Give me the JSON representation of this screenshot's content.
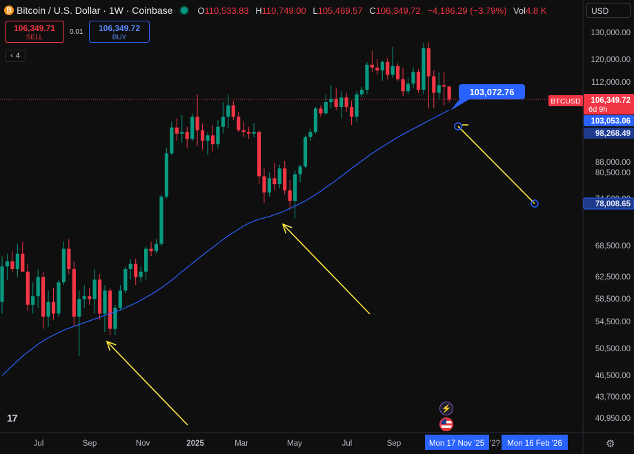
{
  "header": {
    "title": "Bitcoin / U.S. Dollar · 1W · Coinbase",
    "logo_glyph": "₿",
    "ohlc": [
      {
        "key": "O",
        "value": "110,533.83"
      },
      {
        "key": "H",
        "value": "110,749.00"
      },
      {
        "key": "L",
        "value": "105,469.57"
      },
      {
        "key": "C",
        "value": "106,349.72"
      }
    ],
    "change": "−4,186.29 (−3.79%)",
    "vol_label": "Vol",
    "vol_value": "4.8 K"
  },
  "trade": {
    "sell_price": "106,349.71",
    "sell_label": "SELL",
    "spread": "0.01",
    "buy_price": "106,349.72",
    "buy_label": "BUY"
  },
  "indicators_count": "4",
  "currency": "USD",
  "price_axis": {
    "ticks": [
      "130,000.00",
      "120,000.00",
      "112,000.00",
      "88,000.00",
      "80,500.00",
      "74,500.00",
      "68,500.00",
      "62,500.00",
      "58,500.00",
      "54,500.00",
      "50,500.00",
      "46,500.00",
      "43,700.00",
      "40,950.00"
    ],
    "symbol_tag": "BTCUSD",
    "last_price": "106,349.72",
    "countdown": "6d 9h",
    "ma_value": "103,053.06",
    "line_value_1": "98,268.49",
    "line_value_2": "78,008.65"
  },
  "plot_label": "103,072.76",
  "time_axis": {
    "labels": [
      "Jul",
      "Sep",
      "Nov",
      "2025",
      "Mar",
      "May",
      "Jul",
      "Sep"
    ],
    "cursor_1": "Mon 17 Nov '25",
    "cursor_2": "Mon 16 Feb '26",
    "hidden_label": "'2?"
  },
  "colors": {
    "bull": "#089981",
    "bear": "#f23645",
    "ma": "#2962ff",
    "arrow": "#ffeb3b",
    "background": "#0f0f0f"
  },
  "icons": [
    "bitcoin-logo",
    "eye-icon",
    "lightning-icon",
    "us-flag-icon",
    "settings-gear-icon",
    "tradingview-logo"
  ],
  "chart_data": {
    "type": "candlestick",
    "timeframe": "1W",
    "y_scale": "log",
    "ylim": [
      39500,
      135000
    ],
    "candles": [
      {
        "o": 58000,
        "h": 66500,
        "l": 56000,
        "c": 64500
      },
      {
        "o": 64500,
        "h": 67000,
        "l": 62000,
        "c": 65500
      },
      {
        "o": 65500,
        "h": 67500,
        "l": 63500,
        "c": 64000
      },
      {
        "o": 64000,
        "h": 69000,
        "l": 62500,
        "c": 67000
      },
      {
        "o": 67000,
        "h": 69500,
        "l": 64000,
        "c": 63500
      },
      {
        "o": 63500,
        "h": 65000,
        "l": 56500,
        "c": 57500
      },
      {
        "o": 57500,
        "h": 61500,
        "l": 56000,
        "c": 59000
      },
      {
        "o": 59000,
        "h": 64000,
        "l": 57000,
        "c": 62500
      },
      {
        "o": 62500,
        "h": 63500,
        "l": 53500,
        "c": 55500
      },
      {
        "o": 55500,
        "h": 60000,
        "l": 53800,
        "c": 58000
      },
      {
        "o": 58000,
        "h": 60500,
        "l": 55000,
        "c": 56000
      },
      {
        "o": 56000,
        "h": 62000,
        "l": 55500,
        "c": 61500
      },
      {
        "o": 61500,
        "h": 69500,
        "l": 61000,
        "c": 68000
      },
      {
        "o": 68000,
        "h": 70000,
        "l": 63000,
        "c": 64000
      },
      {
        "o": 64000,
        "h": 65500,
        "l": 54000,
        "c": 55500
      },
      {
        "o": 55500,
        "h": 60000,
        "l": 49300,
        "c": 58500
      },
      {
        "o": 58500,
        "h": 61000,
        "l": 57000,
        "c": 59000
      },
      {
        "o": 59000,
        "h": 60500,
        "l": 57500,
        "c": 58500
      },
      {
        "o": 58500,
        "h": 64000,
        "l": 56000,
        "c": 62000
      },
      {
        "o": 62000,
        "h": 63000,
        "l": 55000,
        "c": 56000
      },
      {
        "o": 56000,
        "h": 61000,
        "l": 53000,
        "c": 60000
      },
      {
        "o": 60000,
        "h": 60500,
        "l": 52500,
        "c": 53500
      },
      {
        "o": 53500,
        "h": 57500,
        "l": 52500,
        "c": 57000
      },
      {
        "o": 57000,
        "h": 61000,
        "l": 56500,
        "c": 60000
      },
      {
        "o": 60000,
        "h": 64500,
        "l": 59500,
        "c": 64000
      },
      {
        "o": 64000,
        "h": 66000,
        "l": 62000,
        "c": 65000
      },
      {
        "o": 65000,
        "h": 66000,
        "l": 61000,
        "c": 62500
      },
      {
        "o": 62500,
        "h": 64500,
        "l": 61500,
        "c": 63500
      },
      {
        "o": 63500,
        "h": 68500,
        "l": 62000,
        "c": 68000
      },
      {
        "o": 68000,
        "h": 69500,
        "l": 66500,
        "c": 67500
      },
      {
        "o": 67500,
        "h": 70000,
        "l": 67000,
        "c": 69000
      },
      {
        "o": 69000,
        "h": 80000,
        "l": 68500,
        "c": 79500
      },
      {
        "o": 79500,
        "h": 92000,
        "l": 79000,
        "c": 90500
      },
      {
        "o": 90500,
        "h": 99500,
        "l": 90000,
        "c": 97800
      },
      {
        "o": 97800,
        "h": 100500,
        "l": 94000,
        "c": 96000
      },
      {
        "o": 96000,
        "h": 101500,
        "l": 93500,
        "c": 96500
      },
      {
        "o": 96500,
        "h": 98000,
        "l": 92000,
        "c": 94500
      },
      {
        "o": 94500,
        "h": 102000,
        "l": 94000,
        "c": 101000
      },
      {
        "o": 101000,
        "h": 108000,
        "l": 92500,
        "c": 97000
      },
      {
        "o": 97000,
        "h": 99000,
        "l": 91500,
        "c": 94000
      },
      {
        "o": 94000,
        "h": 96500,
        "l": 90000,
        "c": 95500
      },
      {
        "o": 95500,
        "h": 98500,
        "l": 91000,
        "c": 93000
      },
      {
        "o": 93000,
        "h": 100000,
        "l": 92000,
        "c": 98000
      },
      {
        "o": 98000,
        "h": 105500,
        "l": 96000,
        "c": 101000
      },
      {
        "o": 101000,
        "h": 108000,
        "l": 97500,
        "c": 104500
      },
      {
        "o": 104500,
        "h": 106000,
        "l": 100000,
        "c": 101000
      },
      {
        "o": 101000,
        "h": 102500,
        "l": 96500,
        "c": 97000
      },
      {
        "o": 97000,
        "h": 99500,
        "l": 95000,
        "c": 96500
      },
      {
        "o": 96500,
        "h": 98000,
        "l": 94500,
        "c": 96000
      },
      {
        "o": 96000,
        "h": 99000,
        "l": 95000,
        "c": 96500
      },
      {
        "o": 96500,
        "h": 97000,
        "l": 82500,
        "c": 84500
      },
      {
        "o": 84500,
        "h": 86500,
        "l": 78000,
        "c": 80500
      },
      {
        "o": 80500,
        "h": 85500,
        "l": 79500,
        "c": 84000
      },
      {
        "o": 84000,
        "h": 88000,
        "l": 81000,
        "c": 82500
      },
      {
        "o": 82500,
        "h": 87500,
        "l": 81500,
        "c": 86500
      },
      {
        "o": 86500,
        "h": 88500,
        "l": 80000,
        "c": 81000
      },
      {
        "o": 81000,
        "h": 83500,
        "l": 76500,
        "c": 78500
      },
      {
        "o": 78500,
        "h": 86000,
        "l": 74500,
        "c": 85000
      },
      {
        "o": 85000,
        "h": 87500,
        "l": 83000,
        "c": 87000
      },
      {
        "o": 87000,
        "h": 95500,
        "l": 86500,
        "c": 95000
      },
      {
        "o": 95000,
        "h": 97500,
        "l": 94000,
        "c": 96500
      },
      {
        "o": 96500,
        "h": 104000,
        "l": 96000,
        "c": 103500
      },
      {
        "o": 103500,
        "h": 104500,
        "l": 101000,
        "c": 102000
      },
      {
        "o": 102000,
        "h": 108000,
        "l": 101500,
        "c": 105500
      },
      {
        "o": 105500,
        "h": 111000,
        "l": 103500,
        "c": 106500
      },
      {
        "o": 106500,
        "h": 110000,
        "l": 103000,
        "c": 104000
      },
      {
        "o": 104000,
        "h": 109000,
        "l": 100500,
        "c": 107000
      },
      {
        "o": 107000,
        "h": 108500,
        "l": 102500,
        "c": 104000
      },
      {
        "o": 104000,
        "h": 106000,
        "l": 98500,
        "c": 101000
      },
      {
        "o": 101000,
        "h": 109000,
        "l": 99500,
        "c": 108000
      },
      {
        "o": 108000,
        "h": 110500,
        "l": 107000,
        "c": 109500
      },
      {
        "o": 109500,
        "h": 119000,
        "l": 108000,
        "c": 118000
      },
      {
        "o": 118000,
        "h": 123000,
        "l": 115500,
        "c": 117000
      },
      {
        "o": 117000,
        "h": 120000,
        "l": 114500,
        "c": 116000
      },
      {
        "o": 116000,
        "h": 119500,
        "l": 112500,
        "c": 119000
      },
      {
        "o": 119000,
        "h": 120500,
        "l": 113000,
        "c": 114500
      },
      {
        "o": 114500,
        "h": 124500,
        "l": 113500,
        "c": 117500
      },
      {
        "o": 117500,
        "h": 118500,
        "l": 112500,
        "c": 113000
      },
      {
        "o": 113000,
        "h": 117000,
        "l": 107500,
        "c": 109000
      },
      {
        "o": 109000,
        "h": 113500,
        "l": 108000,
        "c": 111500
      },
      {
        "o": 111500,
        "h": 117000,
        "l": 110000,
        "c": 115500
      },
      {
        "o": 115500,
        "h": 116500,
        "l": 108500,
        "c": 109500
      },
      {
        "o": 109500,
        "h": 126000,
        "l": 108000,
        "c": 124000
      },
      {
        "o": 124000,
        "h": 126200,
        "l": 103500,
        "c": 114000
      },
      {
        "o": 114000,
        "h": 116000,
        "l": 103500,
        "c": 108500
      },
      {
        "o": 108500,
        "h": 115500,
        "l": 106500,
        "c": 111000
      },
      {
        "o": 111000,
        "h": 115500,
        "l": 104500,
        "c": 110500
      },
      {
        "o": 110533.83,
        "h": 110749,
        "l": 105469.57,
        "c": 106349.72
      }
    ],
    "ma_series": [
      46500,
      47200,
      47900,
      48600,
      49300,
      49900,
      50500,
      51100,
      51600,
      52100,
      52500,
      52900,
      53300,
      53600,
      53900,
      54200,
      54500,
      54800,
      55100,
      55400,
      55700,
      56000,
      56300,
      56600,
      57000,
      57400,
      57800,
      58300,
      58800,
      59300,
      59900,
      60500,
      61200,
      61900,
      62700,
      63500,
      64300,
      65100,
      65900,
      66700,
      67500,
      68300,
      69100,
      69900,
      70700,
      71400,
      72100,
      72800,
      73400,
      73900,
      74300,
      74600,
      74900,
      75300,
      75700,
      76200,
      76700,
      77300,
      77900,
      78500,
      79200,
      80000,
      80800,
      81700,
      82600,
      83500,
      84500,
      85500,
      86500,
      87500,
      88500,
      89500,
      90500,
      91400,
      92300,
      93200,
      94100,
      95000,
      95800,
      96600,
      97400,
      98200,
      99000,
      99800,
      100600,
      101400,
      102200,
      103053.06
    ],
    "ma_label": "103,053.06"
  }
}
